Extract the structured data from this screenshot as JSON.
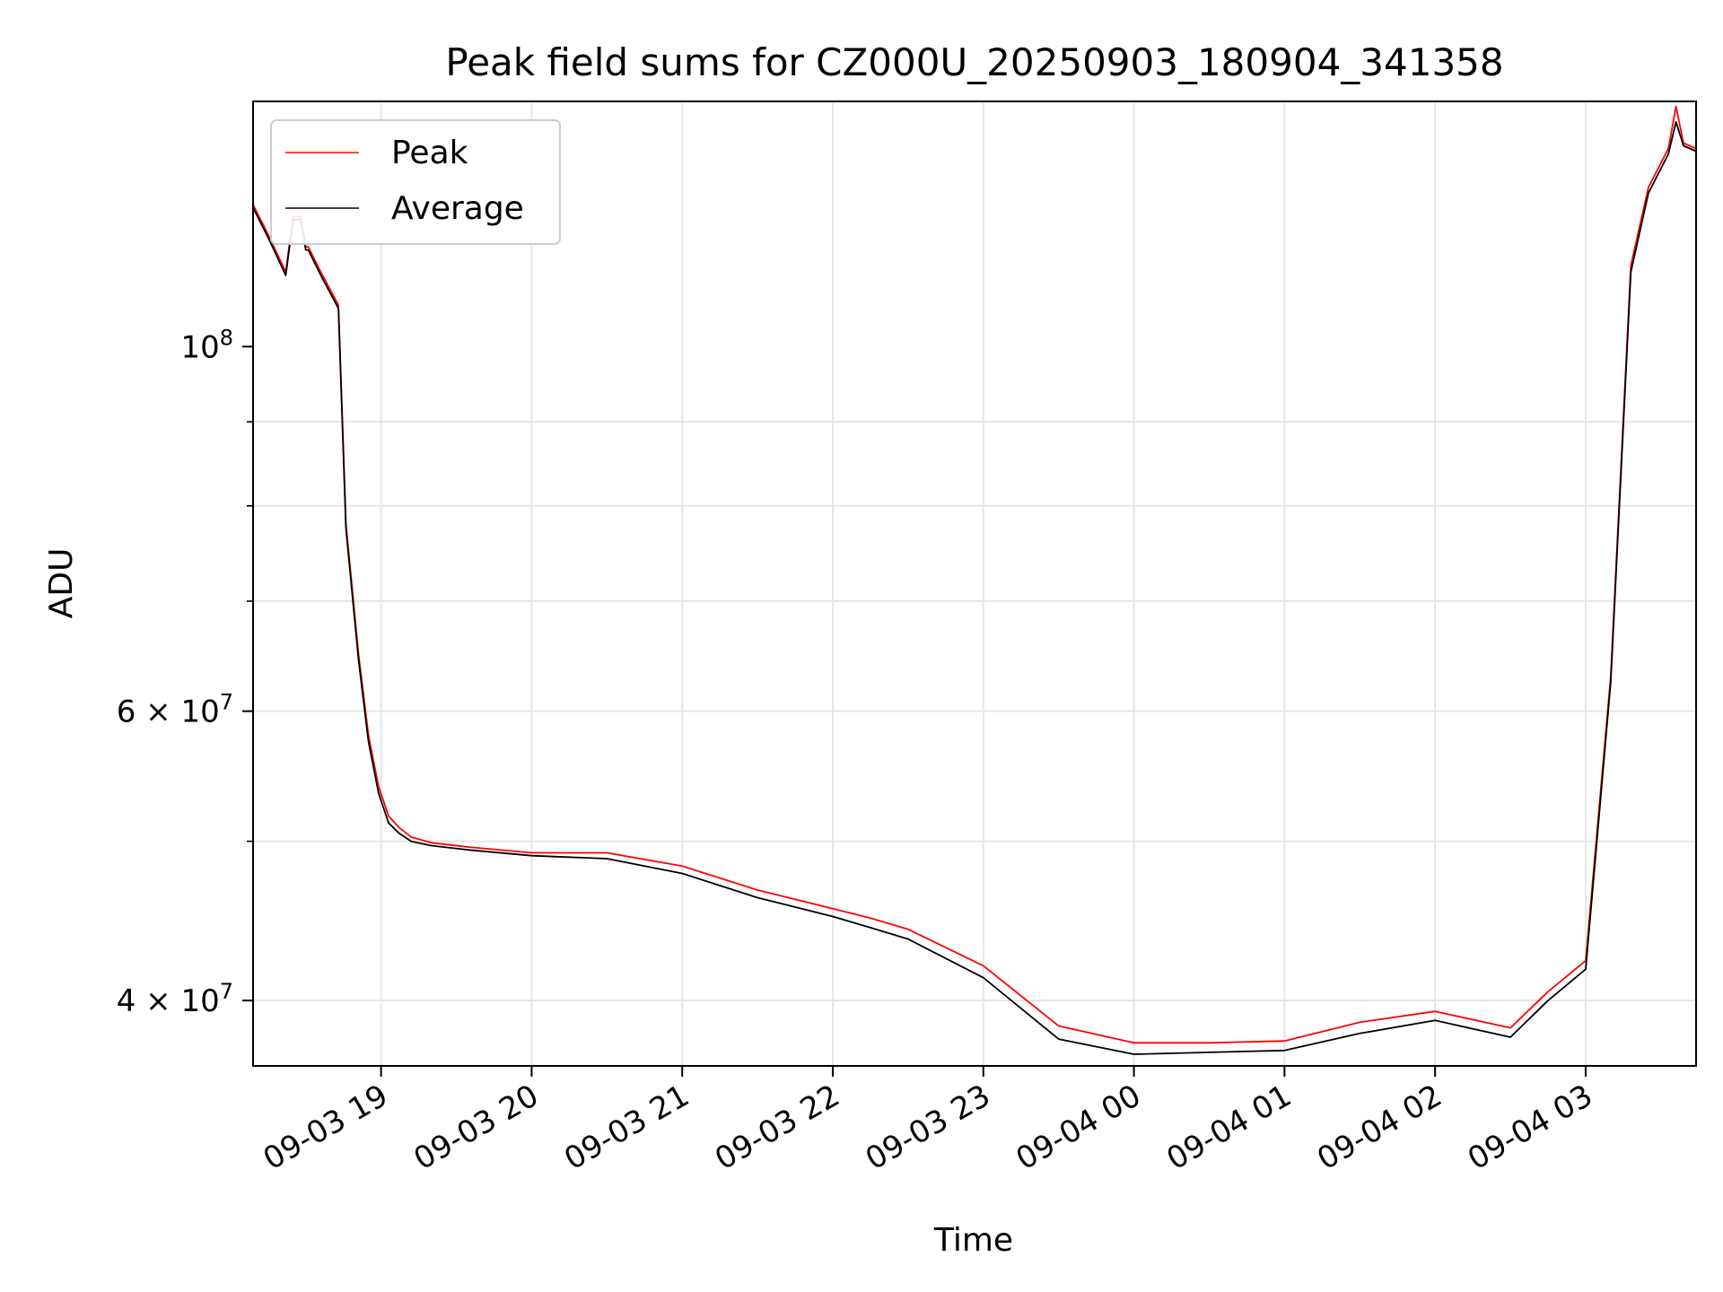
{
  "chart_data": {
    "type": "line",
    "title": "Peak field sums for CZ000U_20250903_180904_341358",
    "xlabel": "Time",
    "ylabel": "ADU",
    "yscale": "log",
    "grid": true,
    "legend_position": "top-left",
    "xlim": [
      "2025-09-03 18:09",
      "2025-09-04 03:44"
    ],
    "ylim": [
      36500000,
      141000000
    ],
    "x_tick_labels": [
      "09-03 19",
      "09-03 20",
      "09-03 21",
      "09-03 22",
      "09-03 23",
      "09-04 00",
      "09-04 01",
      "09-04 02",
      "09-04 03"
    ],
    "y_tick_labels": [
      {
        "value": 100000000,
        "mantissa": "",
        "base": "10",
        "exp": "8"
      },
      {
        "value": 60000000,
        "mantissa": "6 × ",
        "base": "10",
        "exp": "7"
      },
      {
        "value": 40000000,
        "mantissa": "4 × ",
        "base": "10",
        "exp": "7"
      }
    ],
    "x": [
      "2025-09-03 18:09",
      "2025-09-03 18:15",
      "2025-09-03 18:22",
      "2025-09-03 18:25",
      "2025-09-03 18:28",
      "2025-09-03 18:30",
      "2025-09-03 18:31",
      "2025-09-03 18:36",
      "2025-09-03 18:43",
      "2025-09-03 18:46",
      "2025-09-03 18:51",
      "2025-09-03 18:55",
      "2025-09-03 18:59",
      "2025-09-03 19:03",
      "2025-09-03 19:07",
      "2025-09-03 19:12",
      "2025-09-03 19:20",
      "2025-09-03 19:35",
      "2025-09-03 20:00",
      "2025-09-03 20:30",
      "2025-09-03 21:00",
      "2025-09-03 21:30",
      "2025-09-03 22:00",
      "2025-09-03 22:15",
      "2025-09-03 22:30",
      "2025-09-03 23:00",
      "2025-09-03 23:30",
      "2025-09-04 00:00",
      "2025-09-04 00:30",
      "2025-09-04 01:00",
      "2025-09-04 01:30",
      "2025-09-04 02:00",
      "2025-09-04 02:30",
      "2025-09-04 02:45",
      "2025-09-04 03:00",
      "2025-09-04 03:10",
      "2025-09-04 03:18",
      "2025-09-04 03:25",
      "2025-09-04 03:33",
      "2025-09-04 03:36",
      "2025-09-04 03:39",
      "2025-09-04 03:44"
    ],
    "series": [
      {
        "name": "Peak",
        "color": "#ff0000",
        "values": [
          122000000,
          117000000,
          111000000,
          120000000,
          120000000,
          115000000,
          115000000,
          111000000,
          106000000,
          78000000,
          65000000,
          58000000,
          54000000,
          51800000,
          51000000,
          50300000,
          49900000,
          49600000,
          49200000,
          49200000,
          48300000,
          46700000,
          45500000,
          44900000,
          44200000,
          42000000,
          38600000,
          37700000,
          37700000,
          37800000,
          38800000,
          39400000,
          38500000,
          40500000,
          42300000,
          63000000,
          112000000,
          125000000,
          132000000,
          140000000,
          133000000,
          132000000
        ]
      },
      {
        "name": "Average",
        "color": "#000000",
        "values": [
          121500000,
          116500000,
          110500000,
          119500000,
          119500000,
          114500000,
          114500000,
          110500000,
          105500000,
          77500000,
          64500000,
          57500000,
          53500000,
          51300000,
          50600000,
          50000000,
          49700000,
          49400000,
          49000000,
          48800000,
          47800000,
          46200000,
          45000000,
          44300000,
          43600000,
          41300000,
          37900000,
          37100000,
          37200000,
          37300000,
          38200000,
          38900000,
          38000000,
          40000000,
          41800000,
          62500000,
          111000000,
          124000000,
          131000000,
          137000000,
          132500000,
          131500000
        ]
      }
    ]
  }
}
